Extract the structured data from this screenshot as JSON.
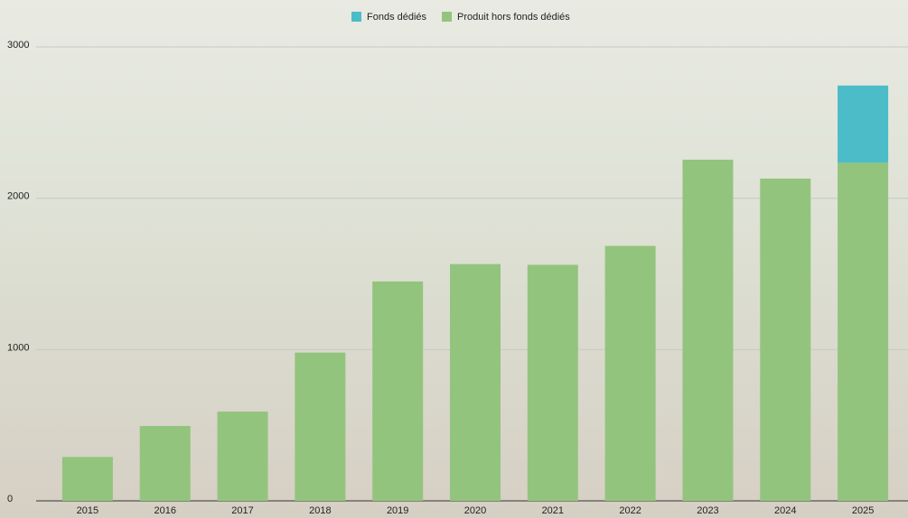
{
  "chart_data": {
    "type": "stacked_bar",
    "categories": [
      "2015",
      "2016",
      "2017",
      "2018",
      "2019",
      "2020",
      "2021",
      "2022",
      "2023",
      "2024",
      "2025"
    ],
    "series": [
      {
        "name": "Fonds dédiés",
        "color": "#4bbcc8",
        "values": [
          null,
          null,
          null,
          null,
          null,
          null,
          null,
          null,
          null,
          null,
          510
        ]
      },
      {
        "name": "Produit hors fonds dédiés",
        "color": "#93c47d",
        "values": [
          290,
          495,
          590,
          980,
          1450,
          1565,
          1560,
          1685,
          2255,
          2130,
          2235
        ]
      }
    ],
    "ylim": [
      0,
      3300
    ],
    "yticks": [
      0,
      1000,
      2000,
      3000
    ],
    "grid": true,
    "legend": "top"
  }
}
